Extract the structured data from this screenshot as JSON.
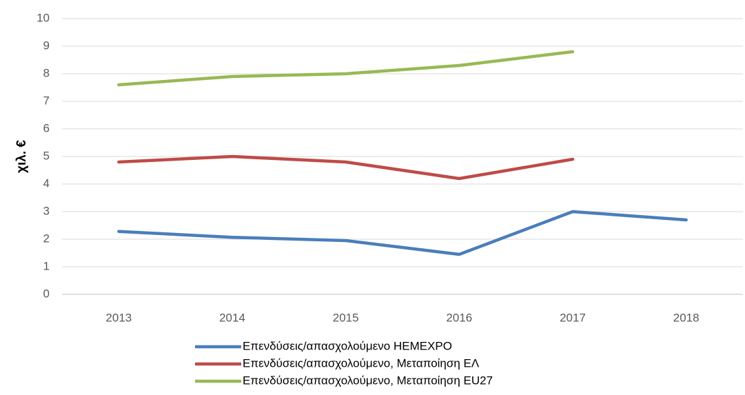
{
  "chart_data": {
    "type": "line",
    "y_label": "χιλ. €",
    "categories": [
      "2013",
      "2014",
      "2015",
      "2016",
      "2017",
      "2018"
    ],
    "series": [
      {
        "name": "Επενδύσεις/απασχολούμενο HEMEXPO",
        "color": "#4a7ebb",
        "values": [
          2.28,
          2.07,
          1.95,
          1.45,
          3.0,
          2.7
        ]
      },
      {
        "name": "Επενδύσεις/απασχολούμενο, Μεταποίηση ΕΛ",
        "color": "#be4b48",
        "values": [
          4.8,
          5.0,
          4.8,
          4.2,
          4.9,
          null
        ]
      },
      {
        "name": "Επενδύσεις/απασχολούμενο, Μεταποίηση EU27",
        "color": "#98b954",
        "values": [
          7.6,
          7.9,
          8.0,
          8.3,
          8.8,
          null
        ]
      }
    ],
    "ylim": [
      0,
      10
    ],
    "yticks": [
      0,
      1,
      2,
      3,
      4,
      5,
      6,
      7,
      8,
      9,
      10
    ],
    "grid": true,
    "legend": "bottom"
  }
}
